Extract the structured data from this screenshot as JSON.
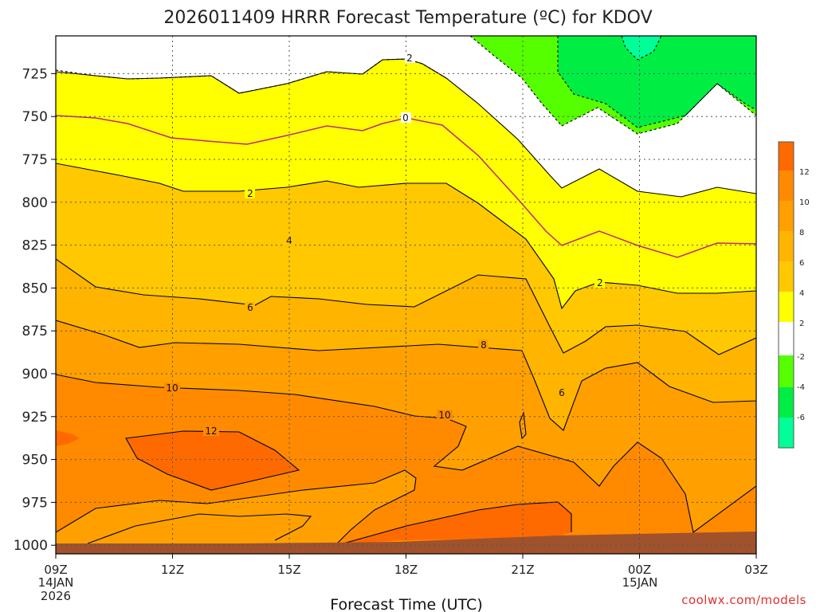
{
  "chart_data": {
    "type": "contour",
    "title": "2026011409 HRRR Forecast Temperature (ºC) for KDOV",
    "xlabel": "Forecast Time (UTC)",
    "ylabel": "",
    "credit": "coolwx.com/models",
    "x_ticks": [
      "09Z",
      "12Z",
      "15Z",
      "18Z",
      "21Z",
      "00Z",
      "03Z"
    ],
    "x_tick_sub1": [
      "14JAN",
      "",
      "",
      "",
      "",
      "15JAN",
      ""
    ],
    "x_tick_sub2": [
      "2026",
      "",
      "",
      "",
      "",
      "",
      ""
    ],
    "y_ticks": [
      725,
      750,
      775,
      800,
      825,
      850,
      875,
      900,
      925,
      950,
      975,
      1000
    ],
    "y_range_hpa": [
      1005,
      703
    ],
    "x_range_hours": [
      9,
      27
    ],
    "colorbar_ticks": [
      12,
      10,
      8,
      6,
      4,
      2,
      -2,
      -4,
      -6
    ],
    "contour_labels": [
      "2",
      "0",
      "2",
      "4",
      "6",
      "8",
      "10",
      "10",
      "12",
      "2",
      "6"
    ],
    "fill_colors": {
      "c12_14": "#ff6a00",
      "c10_12": "#ff8a00",
      "c8_10": "#ffa000",
      "c6_8": "#ffb400",
      "c4_6": "#ffc800",
      "c2_4": "#ffff00",
      "cm2_2": "#ffffff",
      "cm4_m2": "#55ff00",
      "cm6_m4": "#00ee44",
      "cm8_m6": "#00ff99",
      "ground": "#a0522d",
      "zero_line": "#c0287a"
    }
  }
}
